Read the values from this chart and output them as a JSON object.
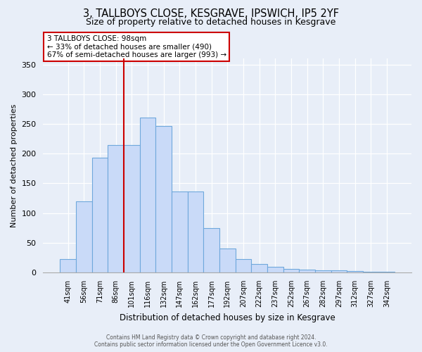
{
  "title": "3, TALLBOYS CLOSE, KESGRAVE, IPSWICH, IP5 2YF",
  "subtitle": "Size of property relative to detached houses in Kesgrave",
  "xlabel": "Distribution of detached houses by size in Kesgrave",
  "ylabel": "Number of detached properties",
  "bar_labels": [
    "41sqm",
    "56sqm",
    "71sqm",
    "86sqm",
    "101sqm",
    "116sqm",
    "132sqm",
    "147sqm",
    "162sqm",
    "177sqm",
    "192sqm",
    "207sqm",
    "222sqm",
    "237sqm",
    "252sqm",
    "267sqm",
    "282sqm",
    "297sqm",
    "312sqm",
    "327sqm",
    "342sqm"
  ],
  "bar_values": [
    23,
    120,
    193,
    215,
    215,
    261,
    246,
    136,
    136,
    75,
    40,
    22,
    14,
    9,
    6,
    5,
    4,
    3,
    2,
    1,
    1
  ],
  "bar_color": "#c9daf8",
  "bar_edge_color": "#6fa8dc",
  "vline_index": 4,
  "vline_color": "#cc0000",
  "annotation_title": "3 TALLBOYS CLOSE: 98sqm",
  "annotation_line1": "← 33% of detached houses are smaller (490)",
  "annotation_line2": "67% of semi-detached houses are larger (993) →",
  "annotation_box_edge": "#cc0000",
  "ylim": [
    0,
    360
  ],
  "yticks": [
    0,
    50,
    100,
    150,
    200,
    250,
    300,
    350
  ],
  "background_color": "#e8eef8",
  "grid_color": "#ffffff",
  "footer_line1": "Contains HM Land Registry data © Crown copyright and database right 2024.",
  "footer_line2": "Contains public sector information licensed under the Open Government Licence v3.0."
}
